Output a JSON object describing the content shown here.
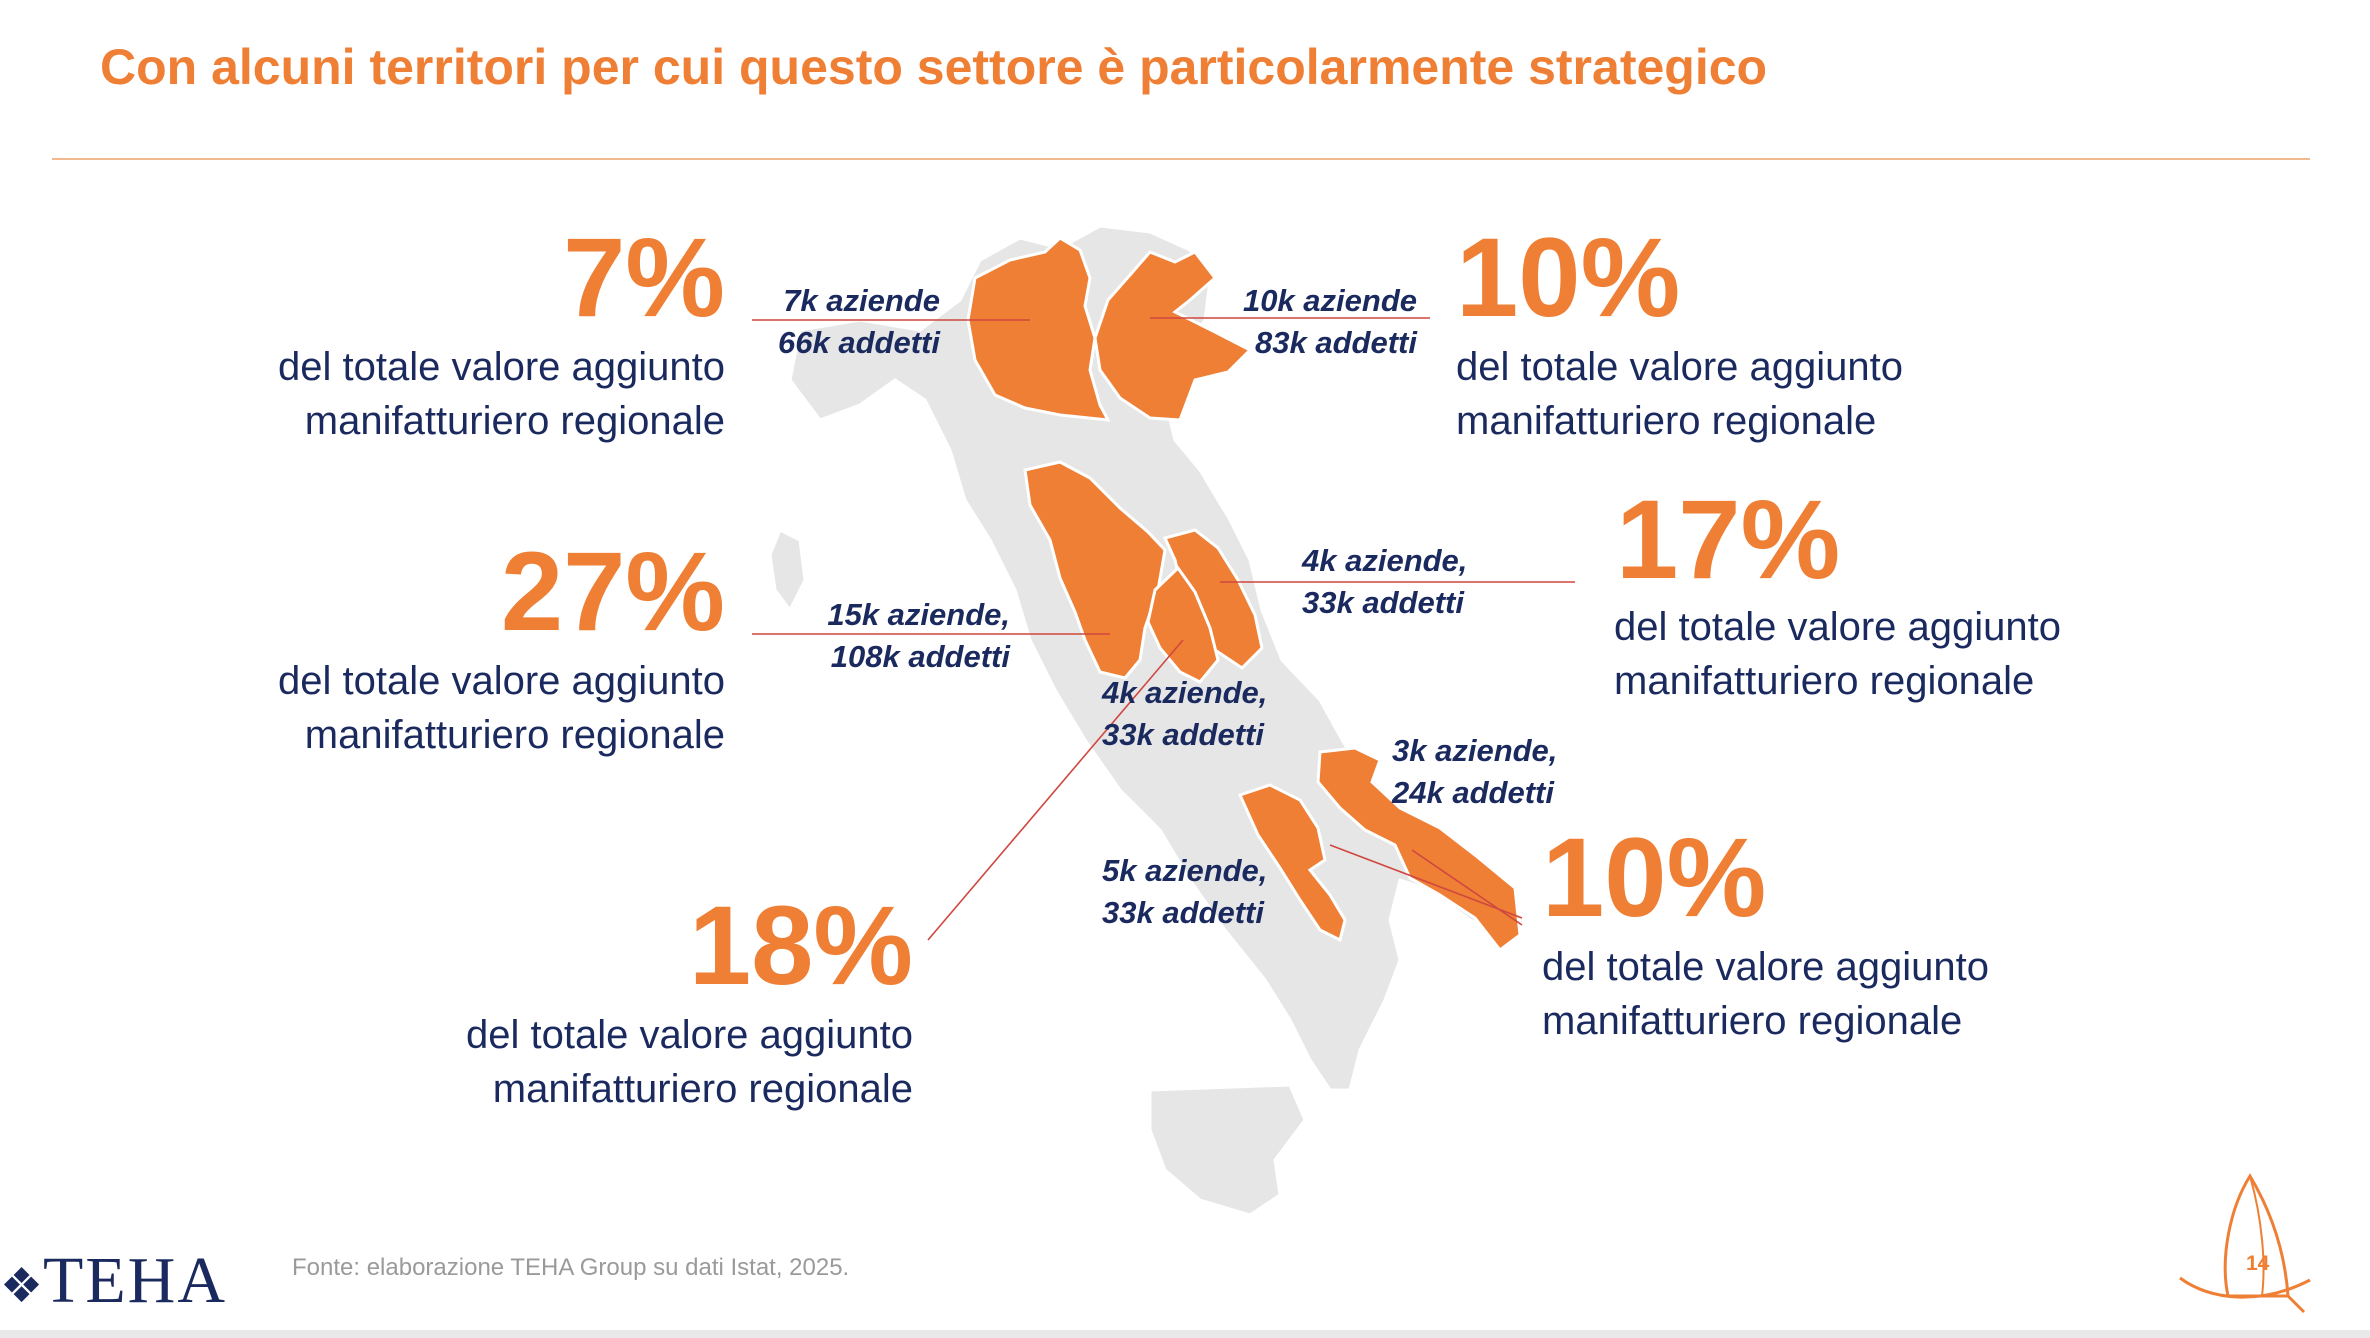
{
  "title": "Con alcuni territori per cui questo settore è particolarmente strategico",
  "colors": {
    "accent": "#EE7F35",
    "text": "#1B2A5E",
    "map_base": "#E6E6E6",
    "leader": "#D0473F"
  },
  "callouts": [
    {
      "id": "lombardia",
      "pct": "7%",
      "desc": [
        "del totale valore aggiunto",
        "manifatturiero regionale"
      ],
      "label": [
        "7k aziende",
        "66k addetti"
      ]
    },
    {
      "id": "veneto",
      "pct": "10%",
      "desc": [
        "del totale valore aggiunto",
        "manifatturiero regionale"
      ],
      "label": [
        "10k aziende",
        "83k addetti"
      ]
    },
    {
      "id": "toscana",
      "pct": "27%",
      "desc": [
        "del totale valore aggiunto",
        "manifatturiero regionale"
      ],
      "label": [
        "15k aziende,",
        "108k addetti"
      ]
    },
    {
      "id": "marche",
      "pct": "17%",
      "desc": [
        "del totale valore aggiunto",
        "manifatturiero regionale"
      ],
      "label": [
        "4k aziende,",
        "33k addetti"
      ]
    },
    {
      "id": "umbria",
      "pct": "18%",
      "desc": [
        "del totale valore aggiunto",
        "manifatturiero regionale"
      ],
      "label": [
        "4k aziende,",
        "33k addetti"
      ]
    },
    {
      "id": "puglia",
      "pct": "10%",
      "desc": [
        "del totale valore aggiunto",
        "manifatturiero regionale"
      ],
      "label": [
        "3k aziende,",
        "24k addetti"
      ]
    },
    {
      "id": "campania",
      "label": [
        "5k aziende,",
        "33k addetti"
      ]
    }
  ],
  "source": "Fonte: elaborazione TEHA Group su dati Istat, 2025.",
  "logo": {
    "text": "TEHA",
    "icon": "teha-knot-icon"
  },
  "page_number": "14",
  "sail_icon": "sailboat-icon"
}
